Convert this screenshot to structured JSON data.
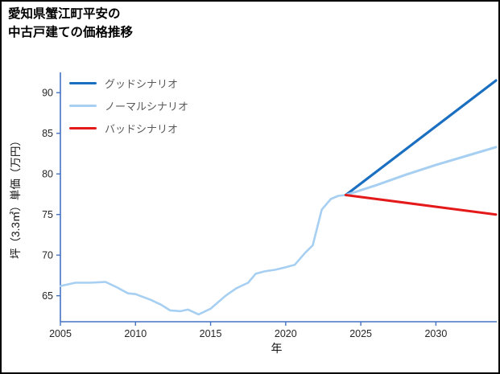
{
  "title": {
    "line1": "愛知県蟹江町平安の",
    "line2": "中古戸建ての価格推移"
  },
  "legend": [
    {
      "label": "グッドシナリオ",
      "color": "#1b6fc0"
    },
    {
      "label": "ノーマルシナリオ",
      "color": "#a6cff2"
    },
    {
      "label": "バッドシナリオ",
      "color": "#e41a1a"
    }
  ],
  "chart_data": {
    "type": "line",
    "title": "愛知県蟹江町平安の中古戸建ての価格推移",
    "xlabel": "年",
    "ylabel": "坪（3.3㎡）単価（万円）",
    "xlim": [
      2005,
      2034
    ],
    "ylim": [
      61.8,
      92.5
    ],
    "xticks": [
      2005,
      2010,
      2015,
      2020,
      2025,
      2030
    ],
    "yticks": [
      65,
      70,
      75,
      80,
      85,
      90
    ],
    "grid": false,
    "legend_position": "upper-left-inside",
    "axis_color": "#4472c4",
    "tick_label_color": "#262626",
    "series": [
      {
        "id": "history",
        "color": "#a6cff2",
        "width": 2.6,
        "points": [
          [
            2005,
            66.2
          ],
          [
            2006,
            66.6
          ],
          [
            2007,
            66.6
          ],
          [
            2008,
            66.7
          ],
          [
            2008.8,
            66.0
          ],
          [
            2009.5,
            65.3
          ],
          [
            2010,
            65.2
          ],
          [
            2011,
            64.5
          ],
          [
            2011.7,
            63.9
          ],
          [
            2012.3,
            63.2
          ],
          [
            2013,
            63.1
          ],
          [
            2013.5,
            63.3
          ],
          [
            2014.2,
            62.7
          ],
          [
            2015,
            63.4
          ],
          [
            2016,
            65.0
          ],
          [
            2016.7,
            65.9
          ],
          [
            2017.5,
            66.6
          ],
          [
            2018,
            67.7
          ],
          [
            2018.6,
            68.0
          ],
          [
            2019.3,
            68.2
          ],
          [
            2020,
            68.5
          ],
          [
            2020.6,
            68.8
          ],
          [
            2021.3,
            70.3
          ],
          [
            2021.8,
            71.2
          ],
          [
            2022.4,
            75.6
          ],
          [
            2023,
            76.9
          ],
          [
            2023.5,
            77.3
          ],
          [
            2024,
            77.4
          ]
        ]
      },
      {
        "id": "good-scenario",
        "name": "グッドシナリオ",
        "color": "#1b6fc0",
        "width": 3.2,
        "points": [
          [
            2024,
            77.4
          ],
          [
            2034,
            91.5
          ]
        ]
      },
      {
        "id": "normal-scenario",
        "name": "ノーマルシナリオ",
        "color": "#a6cff2",
        "width": 3.0,
        "points": [
          [
            2024,
            77.4
          ],
          [
            2026,
            78.6
          ],
          [
            2028,
            79.9
          ],
          [
            2030,
            81.1
          ],
          [
            2032,
            82.2
          ],
          [
            2034,
            83.3
          ]
        ]
      },
      {
        "id": "bad-scenario",
        "name": "バッドシナリオ",
        "color": "#e41a1a",
        "width": 3.0,
        "points": [
          [
            2024,
            77.4
          ],
          [
            2034,
            75.0
          ]
        ]
      }
    ]
  }
}
